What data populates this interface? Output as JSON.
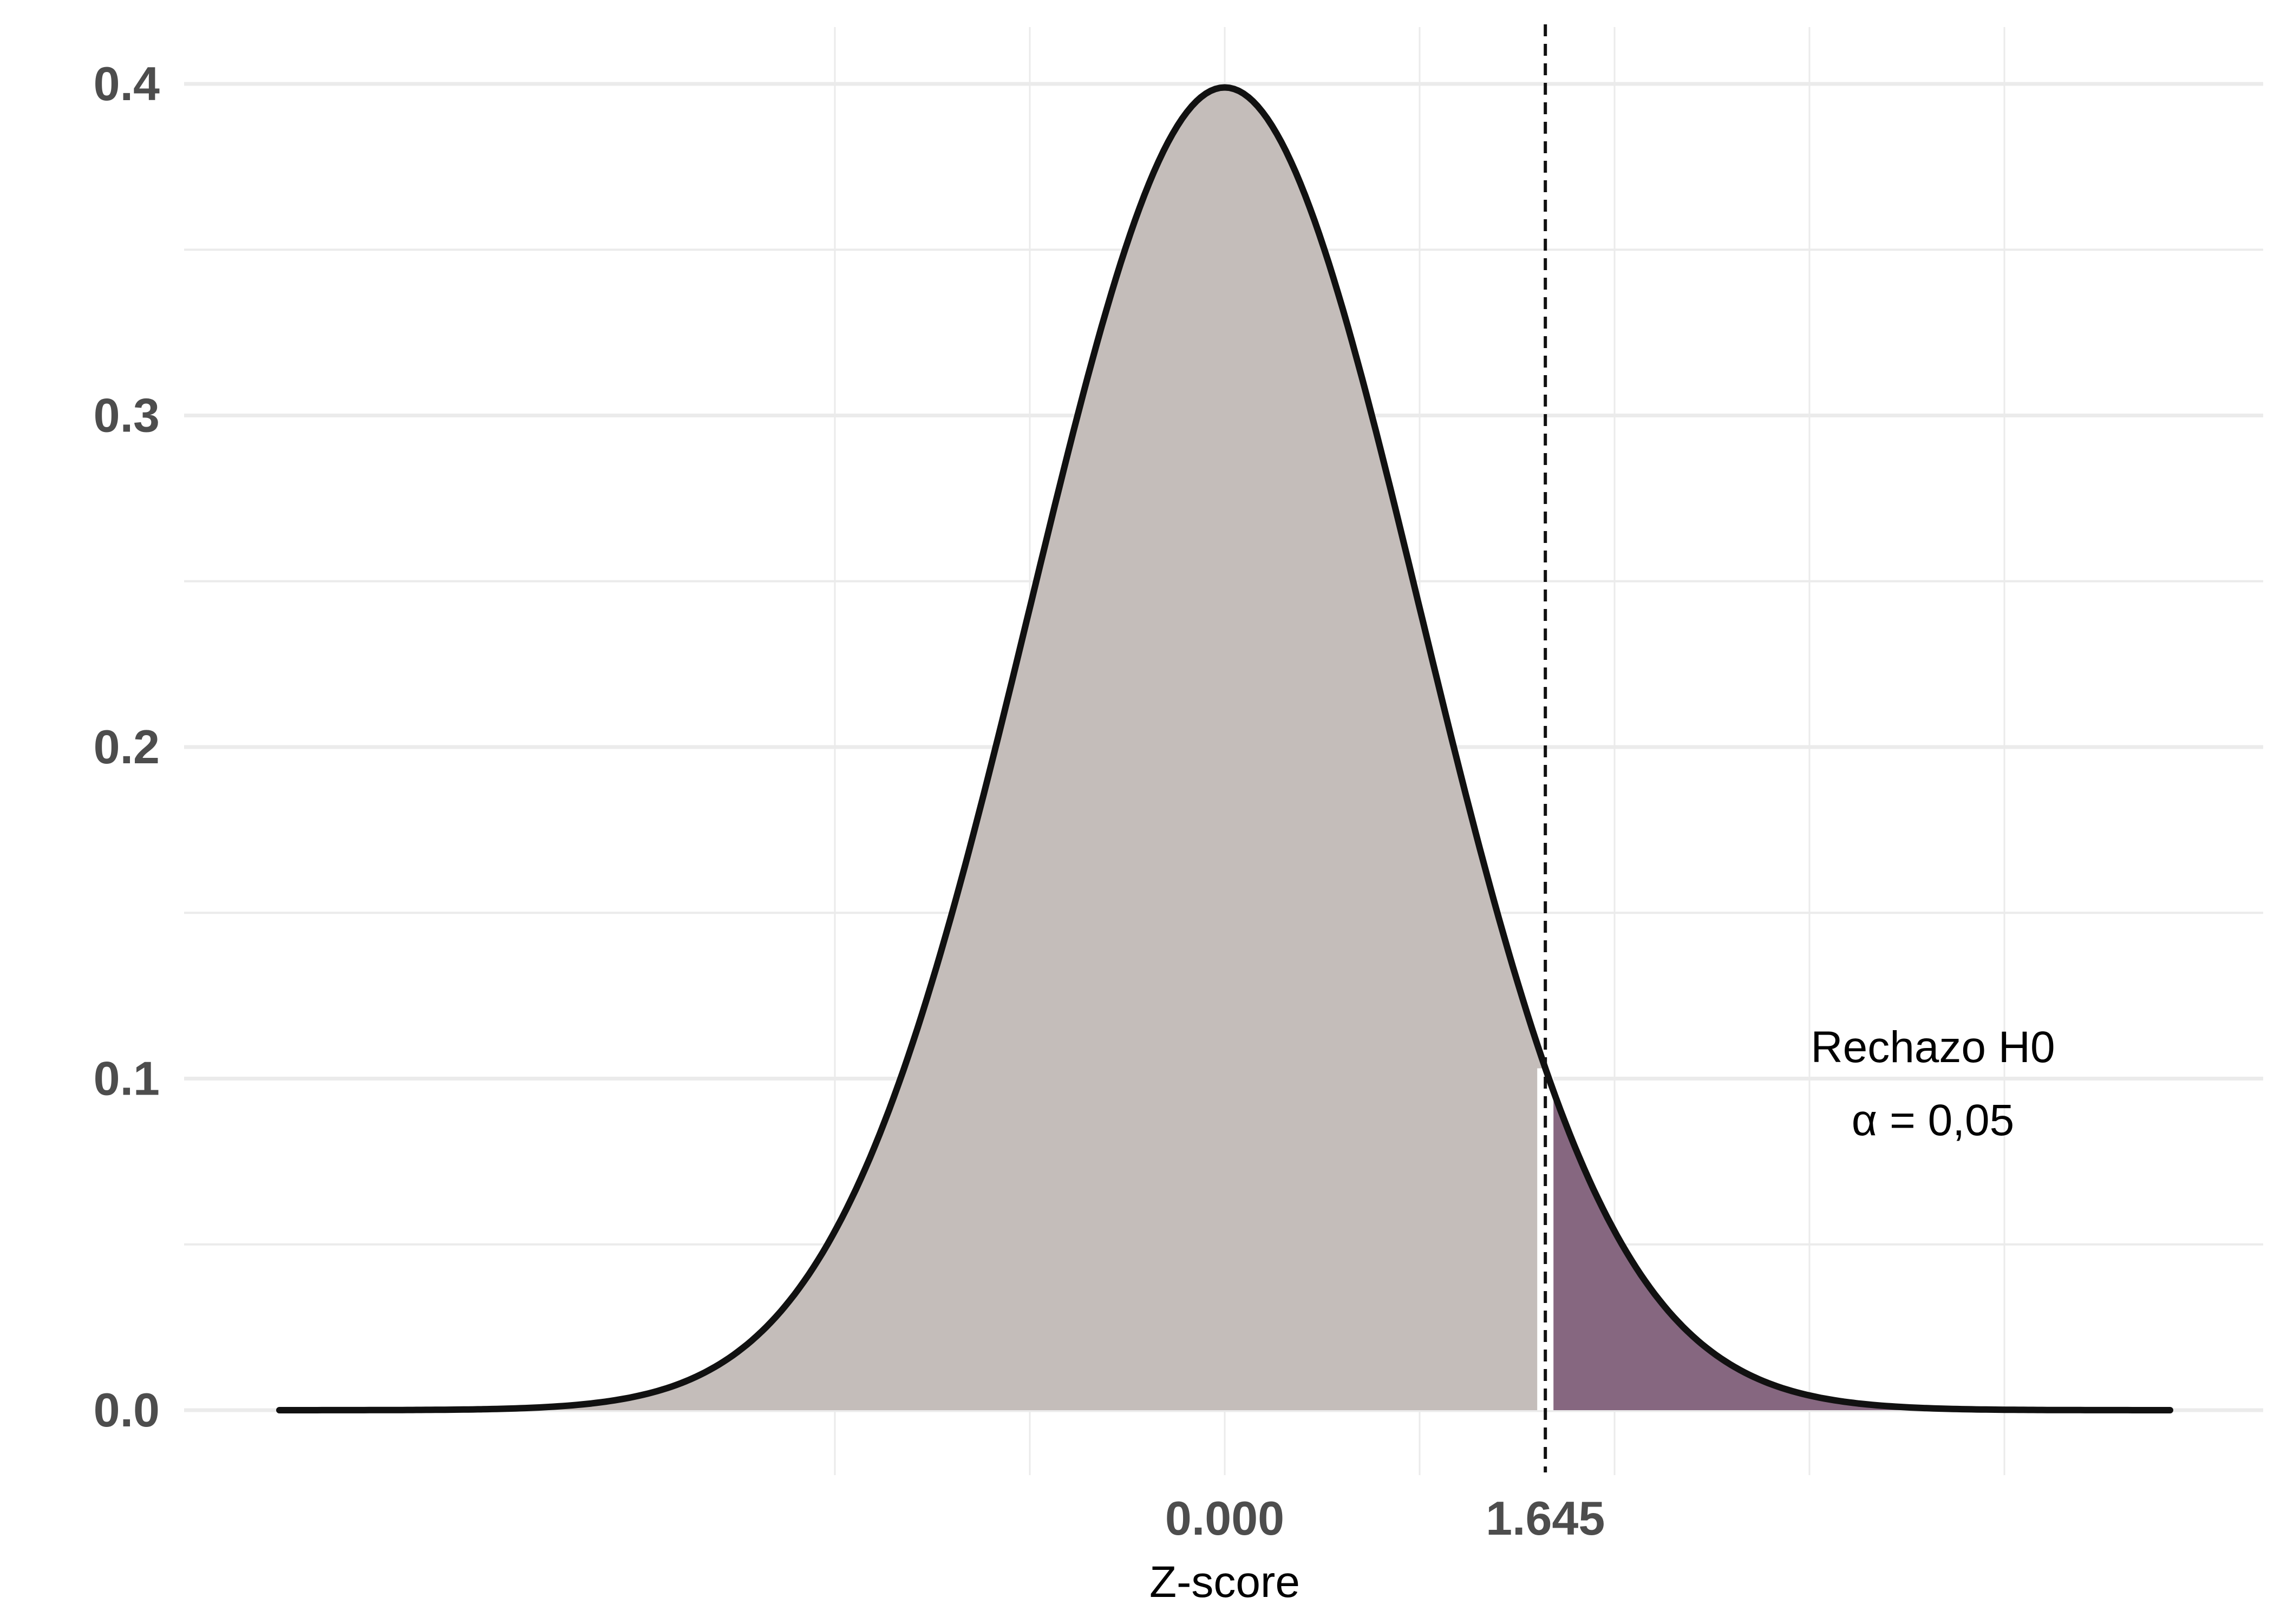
{
  "chart_data": {
    "type": "area",
    "distribution": "standard normal",
    "xlabel": "Z-score",
    "ylabel": "",
    "xlim": [
      -4.85,
      4.85
    ],
    "ylim": [
      0,
      0.4
    ],
    "y_ticks": [
      "0.0",
      "0.1",
      "0.2",
      "0.3",
      "0.4"
    ],
    "x_ticks": [
      {
        "value": 0,
        "label": "0.000"
      },
      {
        "value": 1.645,
        "label": "1.645"
      }
    ],
    "critical_value": 1.645,
    "grid": true,
    "regions": [
      {
        "from": -4.85,
        "to": 1.645,
        "color": "#c4bdba"
      },
      {
        "from": 1.645,
        "to": 4.85,
        "color": "#866780"
      }
    ],
    "annotation": {
      "line1": "Rechazo H0",
      "line2": "α = 0,05"
    },
    "colors": {
      "curve": "#111111",
      "grid": "#ebebeb",
      "acceptance": "#c4bdba",
      "rejection": "#866780"
    }
  }
}
